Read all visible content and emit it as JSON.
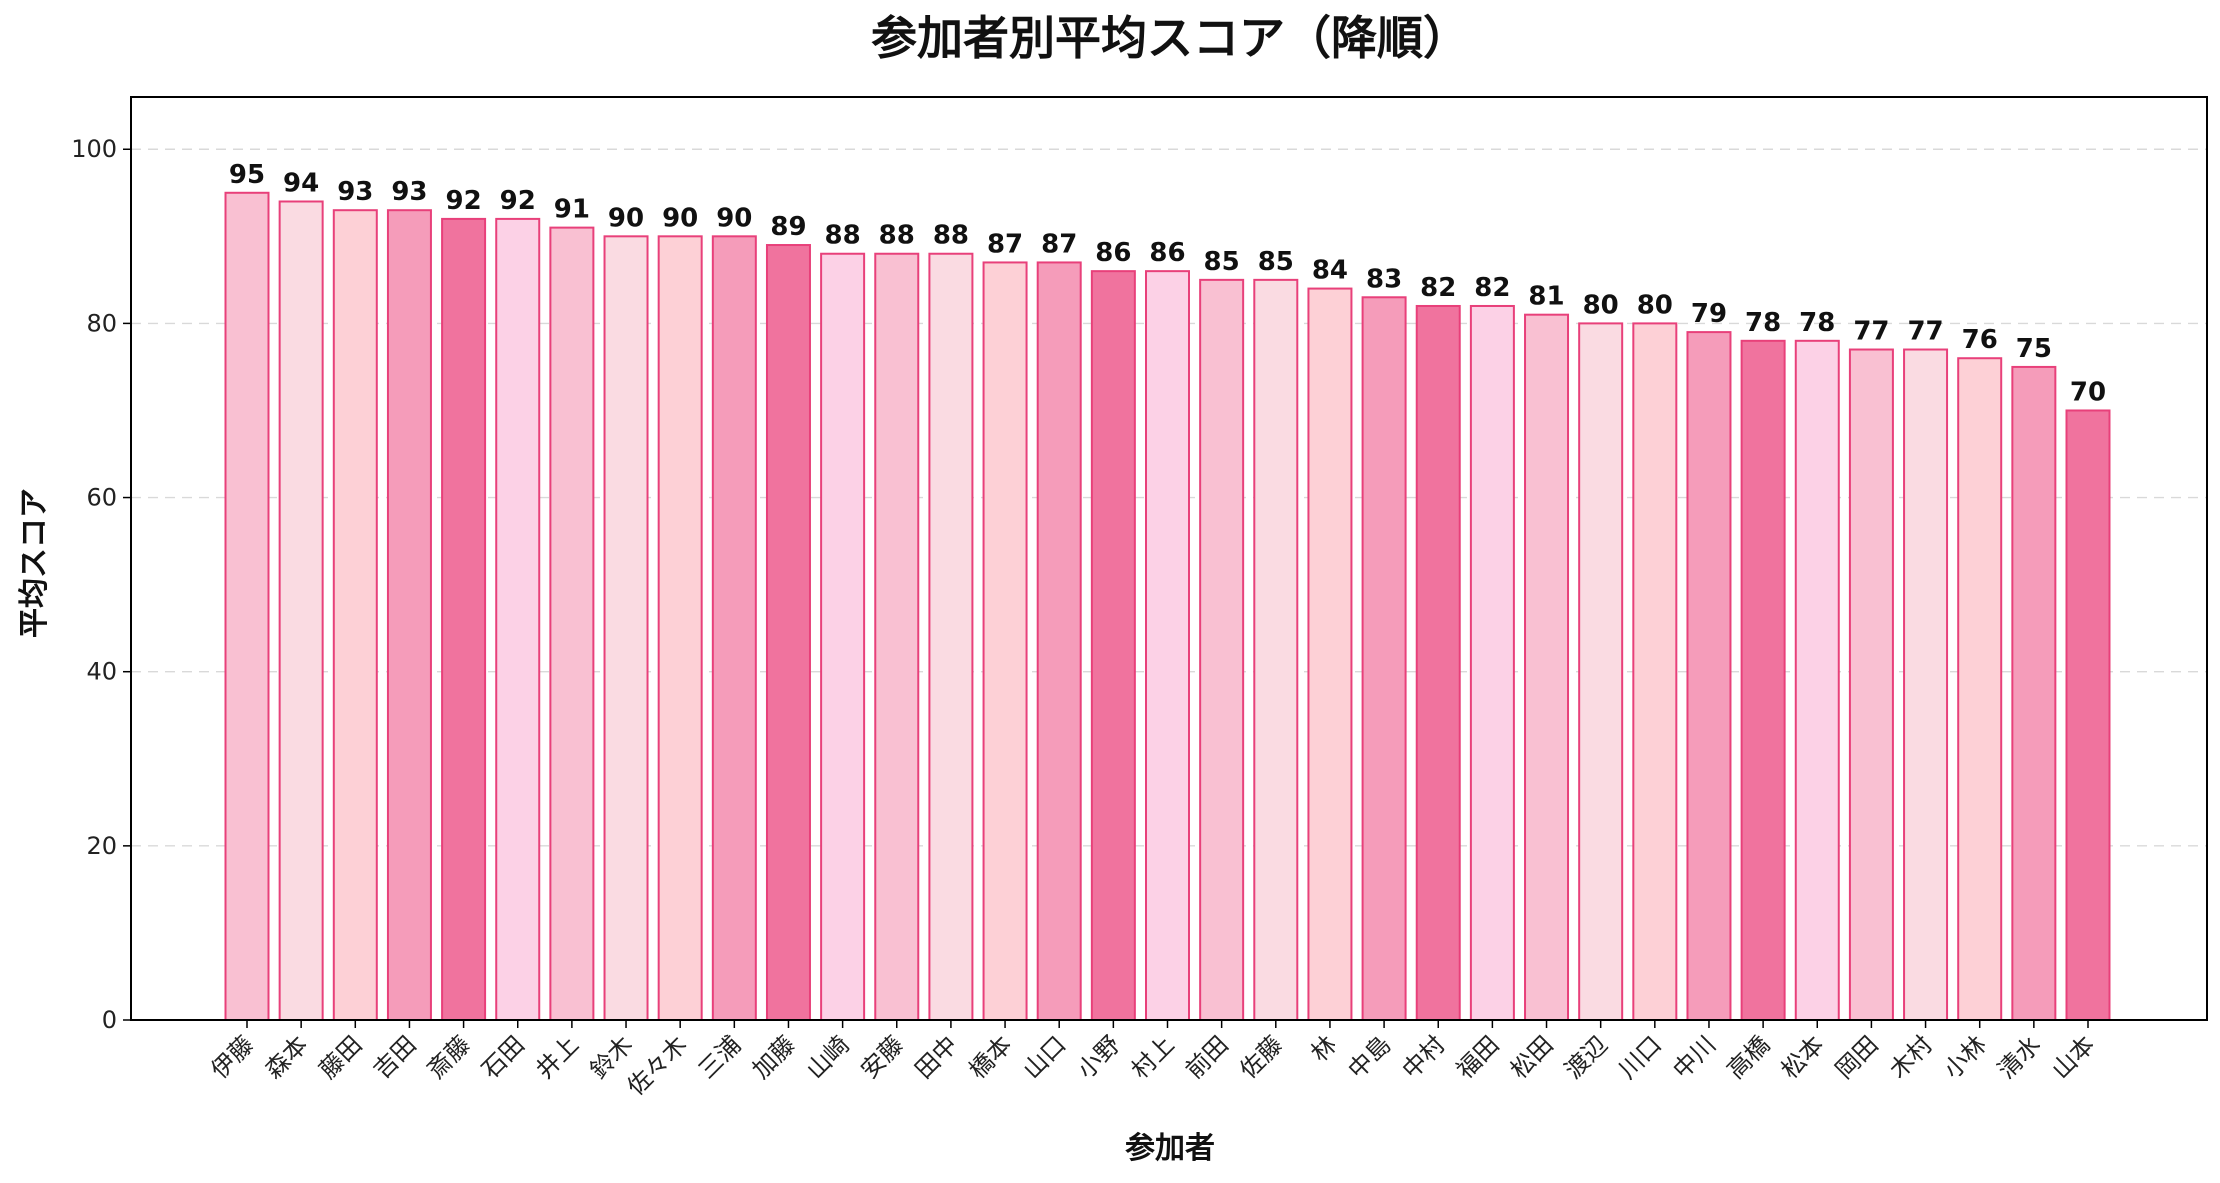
{
  "chart_data": {
    "type": "bar",
    "title": "参加者別平均スコア（降順）",
    "xlabel": "参加者",
    "ylabel": "平均スコア",
    "ylim": [
      0,
      106
    ],
    "yticks": [
      0,
      20,
      40,
      60,
      80,
      100
    ],
    "grid": "y-dashed",
    "categories": [
      "伊藤",
      "森本",
      "藤田",
      "吉田",
      "斎藤",
      "石田",
      "井上",
      "鈴木",
      "佐々木",
      "三浦",
      "加藤",
      "山崎",
      "安藤",
      "田中",
      "橋本",
      "山口",
      "小野",
      "村上",
      "前田",
      "佐藤",
      "林",
      "中島",
      "中村",
      "福田",
      "松田",
      "渡辺",
      "川口",
      "中川",
      "高橋",
      "松本",
      "岡田",
      "木村",
      "小林",
      "清水",
      "山本"
    ],
    "values": [
      95,
      94,
      93,
      93,
      92,
      92,
      91,
      90,
      90,
      90,
      89,
      88,
      88,
      88,
      87,
      87,
      86,
      86,
      85,
      85,
      84,
      83,
      82,
      82,
      81,
      80,
      80,
      79,
      78,
      78,
      77,
      77,
      76,
      75,
      70
    ],
    "bar_edge_color": "#e8407a",
    "bar_colors": [
      "#f9c0d2",
      "#fadbe2",
      "#fdd0d6",
      "#f59cba",
      "#f0739e",
      "#fcd1e6",
      "#f9c0d2",
      "#fadbe2",
      "#fdd0d6",
      "#f59cba",
      "#f0739e",
      "#fcd1e6",
      "#f9c0d2",
      "#fadbe2",
      "#fdd0d6",
      "#f59cba",
      "#f0739e",
      "#fcd1e6",
      "#f9c0d2",
      "#fadbe2",
      "#fdd0d6",
      "#f59cba",
      "#f0739e",
      "#fcd1e6",
      "#f9c0d2",
      "#fadbe2",
      "#fdd0d6",
      "#f59cba",
      "#f0739e",
      "#fcd1e6",
      "#f9c0d2",
      "#fadbe2",
      "#fdd0d6",
      "#f59cba",
      "#f0739e"
    ]
  }
}
